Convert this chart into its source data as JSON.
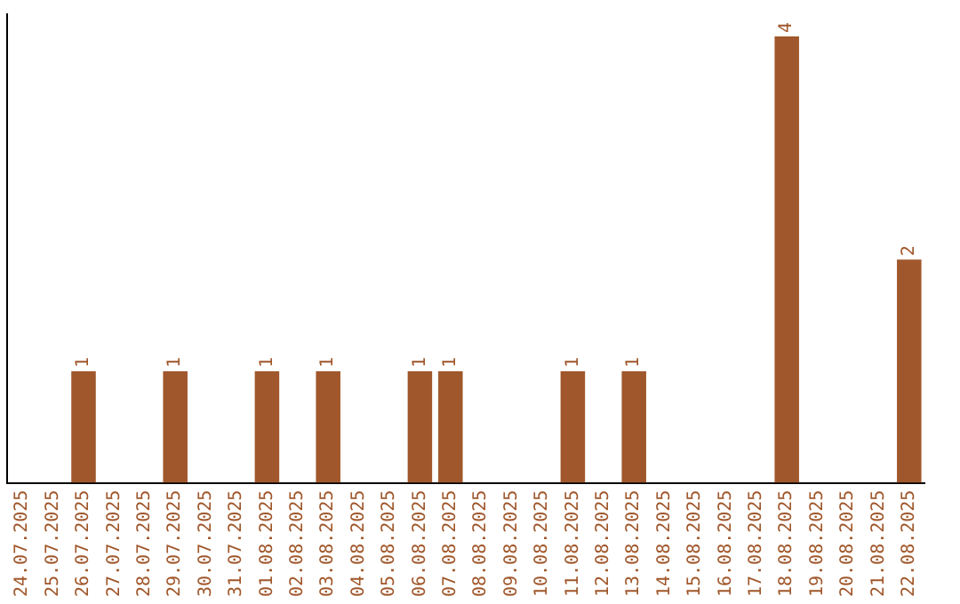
{
  "chart_data": {
    "type": "bar",
    "categories": [
      "24.07.2025",
      "25.07.2025",
      "26.07.2025",
      "27.07.2025",
      "28.07.2025",
      "29.07.2025",
      "30.07.2025",
      "31.07.2025",
      "01.08.2025",
      "02.08.2025",
      "03.08.2025",
      "04.08.2025",
      "05.08.2025",
      "06.08.2025",
      "07.08.2025",
      "08.08.2025",
      "09.08.2025",
      "10.08.2025",
      "11.08.2025",
      "12.08.2025",
      "13.08.2025",
      "14.08.2025",
      "15.08.2025",
      "16.08.2025",
      "17.08.2025",
      "18.08.2025",
      "19.08.2025",
      "20.08.2025",
      "21.08.2025",
      "22.08.2025"
    ],
    "values": [
      0,
      0,
      1,
      0,
      0,
      1,
      0,
      0,
      1,
      0,
      1,
      0,
      0,
      1,
      1,
      0,
      0,
      0,
      1,
      0,
      1,
      0,
      0,
      0,
      0,
      4,
      0,
      0,
      0,
      2
    ],
    "value_labels": [
      null,
      null,
      "1",
      null,
      null,
      "1",
      null,
      null,
      "1",
      null,
      "1",
      null,
      null,
      "1",
      "1",
      null,
      null,
      null,
      "1",
      null,
      "1",
      null,
      null,
      null,
      null,
      "4",
      null,
      null,
      null,
      "2"
    ],
    "color": "#a0572b",
    "ylim": [
      0,
      4.2
    ],
    "tick_labels": "x",
    "grid": false,
    "legend": false
  }
}
